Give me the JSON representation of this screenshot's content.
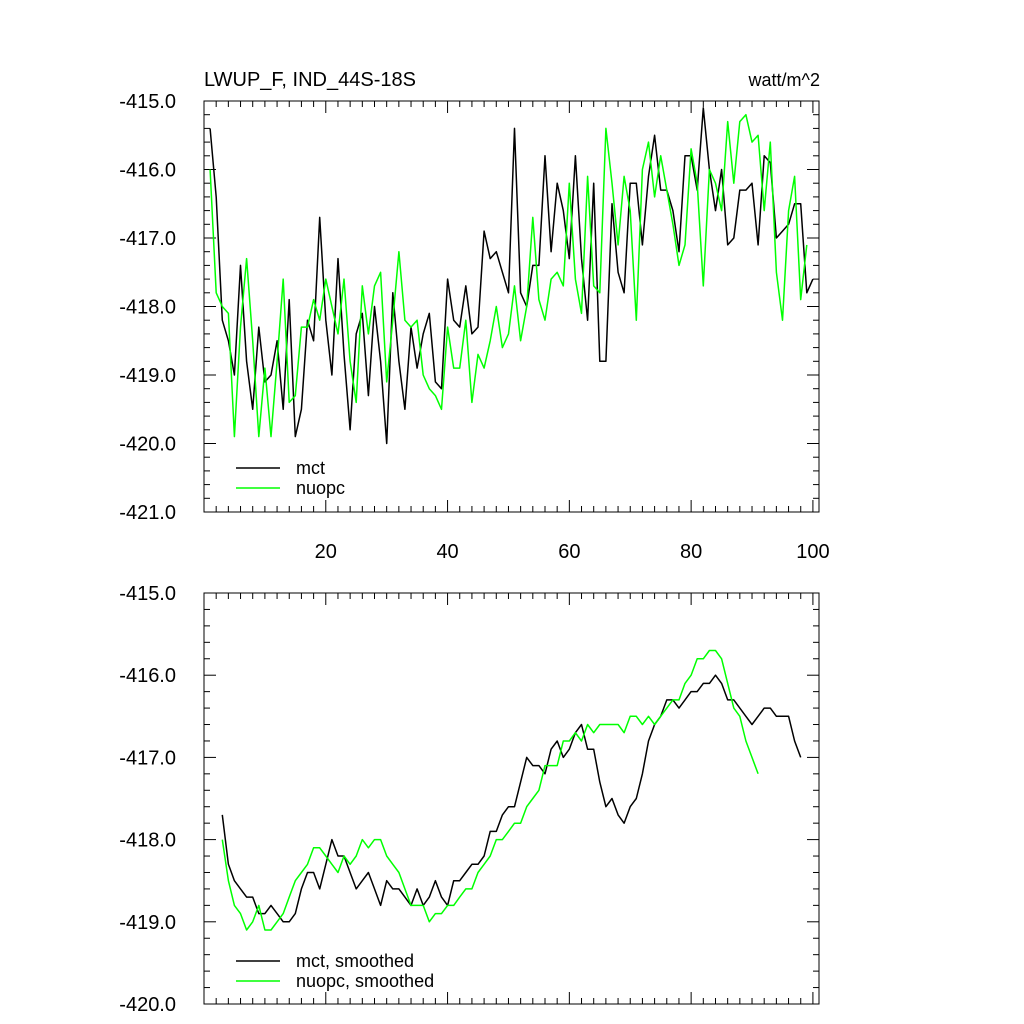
{
  "chart_data": [
    {
      "type": "line",
      "title": "LWUP_F, IND_44S-18S",
      "units": "watt/m^2",
      "ylim": [
        -421.0,
        -415.0
      ],
      "yticks": [
        -415.0,
        -416.0,
        -417.0,
        -418.0,
        -419.0,
        -420.0,
        -421.0
      ],
      "ytick_labels": [
        "-415.0",
        "-416.0",
        "-417.0",
        "-418.0",
        "-419.0",
        "-420.0",
        "-421.0"
      ],
      "xlim": [
        0,
        101
      ],
      "xticks": [
        20,
        40,
        60,
        80,
        100
      ],
      "xtick_labels": [
        "20",
        "40",
        "60",
        "80",
        "100"
      ],
      "legend": [
        "mct",
        "nuopc"
      ],
      "series": [
        {
          "name": "mct",
          "color": "#000000",
          "x0": 1,
          "values": [
            -415.4,
            -416.4,
            -418.2,
            -418.5,
            -419.0,
            -417.4,
            -418.8,
            -419.5,
            -418.3,
            -419.1,
            -419.0,
            -418.5,
            -419.5,
            -417.9,
            -419.9,
            -419.5,
            -418.2,
            -418.5,
            -416.7,
            -418.2,
            -419.0,
            -417.3,
            -418.7,
            -419.8,
            -418.4,
            -418.1,
            -419.3,
            -418.0,
            -418.8,
            -420.0,
            -417.8,
            -418.8,
            -419.5,
            -418.3,
            -418.9,
            -418.4,
            -418.1,
            -419.1,
            -419.2,
            -417.6,
            -418.2,
            -418.3,
            -417.7,
            -418.4,
            -418.3,
            -416.9,
            -417.3,
            -417.2,
            -417.5,
            -417.8,
            -415.4,
            -417.8,
            -418.0,
            -417.4,
            -417.4,
            -415.8,
            -417.2,
            -416.2,
            -416.6,
            -417.3,
            -415.8,
            -417.3,
            -418.2,
            -416.2,
            -418.8,
            -418.8,
            -416.5,
            -417.5,
            -417.8,
            -416.2,
            -416.2,
            -417.1,
            -416.1,
            -415.5,
            -416.3,
            -416.3,
            -416.6,
            -417.2,
            -415.8,
            -415.8,
            -416.3,
            -415.1,
            -416.0,
            -416.6,
            -416.0,
            -417.1,
            -417.0,
            -416.3,
            -416.3,
            -416.2,
            -417.1,
            -415.8,
            -415.9,
            -417.0,
            -416.9,
            -416.8,
            -416.5,
            -416.5,
            -417.8,
            -417.6
          ]
        },
        {
          "name": "nuopc",
          "color": "#00ff00",
          "x0": 1,
          "values": [
            -416.0,
            -417.8,
            -418.0,
            -418.1,
            -419.9,
            -418.3,
            -417.3,
            -418.5,
            -419.9,
            -418.9,
            -419.9,
            -418.8,
            -417.6,
            -419.4,
            -419.3,
            -418.3,
            -418.3,
            -417.9,
            -418.2,
            -417.6,
            -418.0,
            -418.4,
            -417.6,
            -418.8,
            -419.4,
            -417.7,
            -418.4,
            -417.7,
            -417.5,
            -419.1,
            -418.2,
            -417.2,
            -418.2,
            -418.3,
            -418.2,
            -419.0,
            -419.2,
            -419.3,
            -419.5,
            -418.3,
            -418.9,
            -418.9,
            -418.2,
            -419.4,
            -418.7,
            -418.9,
            -418.5,
            -418.0,
            -418.6,
            -418.4,
            -417.7,
            -418.5,
            -418.0,
            -416.7,
            -417.9,
            -418.2,
            -417.6,
            -417.5,
            -417.7,
            -416.2,
            -417.6,
            -418.1,
            -416.1,
            -417.7,
            -417.8,
            -415.4,
            -416.2,
            -417.1,
            -416.1,
            -416.6,
            -418.2,
            -416.0,
            -415.6,
            -416.4,
            -415.8,
            -416.3,
            -416.8,
            -417.4,
            -417.1,
            -415.7,
            -416.2,
            -417.7,
            -416.0,
            -416.2,
            -416.6,
            -415.3,
            -416.2,
            -415.3,
            -415.2,
            -415.6,
            -415.5,
            -416.6,
            -415.6,
            -417.5,
            -418.2,
            -416.6,
            -416.1,
            -417.9,
            -417.1
          ]
        }
      ]
    },
    {
      "type": "line",
      "ylim": [
        -420.0,
        -415.0
      ],
      "yticks": [
        -415.0,
        -416.0,
        -417.0,
        -418.0,
        -419.0,
        -420.0
      ],
      "ytick_labels": [
        "-415.0",
        "-416.0",
        "-417.0",
        "-418.0",
        "-419.0",
        "-420.0"
      ],
      "xlim": [
        0,
        101
      ],
      "xticks": [
        20,
        40,
        60,
        80,
        100
      ],
      "legend": [
        "mct, smoothed",
        "nuopc, smoothed"
      ],
      "series": [
        {
          "name": "mct, smoothed",
          "color": "#000000",
          "x0": 3,
          "values": [
            -417.7,
            -418.3,
            -418.5,
            -418.6,
            -418.7,
            -418.7,
            -418.9,
            -418.9,
            -418.8,
            -418.9,
            -419.0,
            -419.0,
            -418.9,
            -418.6,
            -418.4,
            -418.4,
            -418.6,
            -418.3,
            -418.0,
            -418.2,
            -418.2,
            -418.4,
            -418.6,
            -418.5,
            -418.4,
            -418.6,
            -418.8,
            -418.5,
            -418.6,
            -418.6,
            -418.7,
            -418.8,
            -418.6,
            -418.8,
            -418.7,
            -418.5,
            -418.7,
            -418.8,
            -418.5,
            -418.5,
            -418.4,
            -418.3,
            -418.3,
            -418.2,
            -417.9,
            -417.9,
            -417.7,
            -417.6,
            -417.6,
            -417.3,
            -417.0,
            -417.1,
            -417.1,
            -417.2,
            -416.9,
            -416.8,
            -417.0,
            -416.9,
            -416.7,
            -416.6,
            -416.9,
            -416.9,
            -417.3,
            -417.6,
            -417.5,
            -417.7,
            -417.8,
            -417.6,
            -417.5,
            -417.2,
            -416.8,
            -416.6,
            -416.5,
            -416.3,
            -416.3,
            -416.4,
            -416.3,
            -416.2,
            -416.2,
            -416.1,
            -416.1,
            -416.0,
            -416.1,
            -416.3,
            -416.3,
            -416.4,
            -416.5,
            -416.6,
            -416.5,
            -416.4,
            -416.4,
            -416.5,
            -416.5,
            -416.5,
            -416.8,
            -417.0
          ]
        },
        {
          "name": "nuopc, smoothed",
          "color": "#00ff00",
          "x0": 3,
          "values": [
            -418.0,
            -418.5,
            -418.8,
            -418.9,
            -419.1,
            -419.0,
            -418.8,
            -419.1,
            -419.1,
            -419.0,
            -418.9,
            -418.7,
            -418.5,
            -418.4,
            -418.3,
            -418.1,
            -418.1,
            -418.2,
            -418.3,
            -418.4,
            -418.2,
            -418.3,
            -418.2,
            -418.0,
            -418.1,
            -418.0,
            -418.0,
            -418.2,
            -418.3,
            -418.4,
            -418.6,
            -418.8,
            -418.8,
            -418.8,
            -419.0,
            -418.9,
            -418.9,
            -418.8,
            -418.8,
            -418.7,
            -418.6,
            -418.6,
            -418.4,
            -418.3,
            -418.2,
            -418.0,
            -418.0,
            -417.9,
            -417.8,
            -417.8,
            -417.6,
            -417.5,
            -417.4,
            -417.1,
            -417.1,
            -417.1,
            -416.8,
            -416.8,
            -416.7,
            -416.8,
            -416.6,
            -416.7,
            -416.6,
            -416.6,
            -416.6,
            -416.6,
            -416.7,
            -416.5,
            -416.5,
            -416.6,
            -416.5,
            -416.6,
            -416.5,
            -416.4,
            -416.3,
            -416.3,
            -416.1,
            -416.0,
            -415.8,
            -415.8,
            -415.7,
            -415.7,
            -415.8,
            -416.1,
            -416.4,
            -416.5,
            -416.8,
            -417.0,
            -417.2
          ]
        }
      ]
    }
  ]
}
